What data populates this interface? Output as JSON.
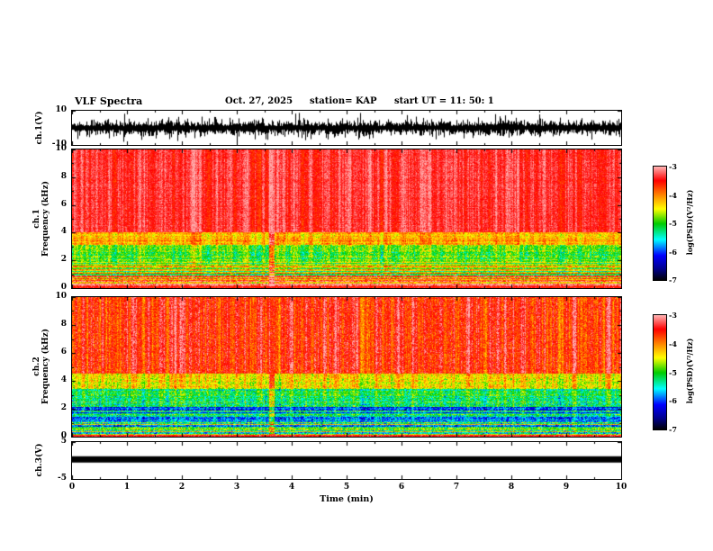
{
  "header": {
    "title": "VLF Spectra",
    "date": "Oct. 27, 2025",
    "station": "station= KAP",
    "start_ut": "start UT =  11: 50: 1"
  },
  "figure": {
    "xlabel": "Time (min)",
    "xlim": [
      0,
      10
    ],
    "xticks": [
      0,
      1,
      2,
      3,
      4,
      5,
      6,
      7,
      8,
      9,
      10
    ],
    "colormap": [
      {
        "t": 0.0,
        "c": "#000000"
      },
      {
        "t": 0.1,
        "c": "#00008b"
      },
      {
        "t": 0.22,
        "c": "#0000ff"
      },
      {
        "t": 0.36,
        "c": "#00ffff"
      },
      {
        "t": 0.5,
        "c": "#00cc00"
      },
      {
        "t": 0.63,
        "c": "#ffff00"
      },
      {
        "t": 0.75,
        "c": "#ff8800"
      },
      {
        "t": 0.88,
        "c": "#ff0000"
      },
      {
        "t": 1.0,
        "c": "#ffb0b0"
      }
    ],
    "colorbars": [
      {
        "label": "log(PSD)(V²/Hz)",
        "ticks": [
          -3,
          -4,
          -5,
          -6,
          -7
        ],
        "range": [
          -7,
          -3
        ]
      },
      {
        "label": "log(PSD)(V²/Hz)",
        "ticks": [
          -3,
          -4,
          -5,
          -6,
          -7
        ],
        "range": [
          -7,
          -3
        ]
      }
    ]
  },
  "chart_data": [
    {
      "type": "line",
      "name": "ch1-waveform",
      "ylabel": "ch.1(V)",
      "ylim": [
        -10,
        10
      ],
      "yticks": [
        10,
        -10
      ],
      "xlim": [
        0,
        10
      ],
      "noise": {
        "seed": 11,
        "base_amp": 4.2,
        "spike_amp": 5.5,
        "spike_prob": 0.05
      },
      "description": "dense black broadband audio waveform, typical amplitude ±4 V, spikes to ±10 V"
    },
    {
      "type": "heatmap",
      "name": "ch1-spectrogram",
      "ylabel_lines": [
        "ch.1",
        "Frequency (kHz)"
      ],
      "ylim": [
        0,
        10
      ],
      "yticks": [
        0,
        2,
        4,
        6,
        8,
        10
      ],
      "xlim": [
        0,
        10
      ],
      "seed": 101,
      "event": {
        "t_min": 3.64,
        "w_min": 0.1,
        "boost": 0.9
      },
      "bottom_line": {
        "f": 0.12,
        "level": -3.5
      },
      "bands": [
        {
          "f0": 4.0,
          "f1": 10.0,
          "mean": -3.35,
          "sigma": 0.18,
          "colvar": 0.28,
          "rowvar": 0.05
        },
        {
          "f0": 3.1,
          "f1": 4.0,
          "mean": -4.15,
          "sigma": 0.3,
          "colvar": 0.3,
          "rowvar": 0.18
        },
        {
          "f0": 1.9,
          "f1": 3.1,
          "mean": -4.9,
          "sigma": 0.4,
          "colvar": 0.35,
          "rowvar": 0.25
        },
        {
          "f0": 0.9,
          "f1": 1.9,
          "mean": -4.5,
          "sigma": 0.35,
          "colvar": 0.25,
          "rowvar": 0.85
        },
        {
          "f0": 0.0,
          "f1": 0.9,
          "mean": -3.9,
          "sigma": 0.45,
          "colvar": 0.15,
          "rowvar": 0.95
        }
      ]
    },
    {
      "type": "heatmap",
      "name": "ch2-spectrogram",
      "ylabel_lines": [
        "ch.2",
        "Frequency (kHz)"
      ],
      "ylim": [
        0,
        10
      ],
      "yticks": [
        0,
        2,
        4,
        6,
        8,
        10
      ],
      "xlim": [
        0,
        10
      ],
      "seed": 202,
      "event": {
        "t_min": 3.64,
        "w_min": 0.1,
        "boost": 0.9
      },
      "bottom_line": {
        "f": 0.14,
        "level": -3.4
      },
      "bands": [
        {
          "f0": 4.5,
          "f1": 10.0,
          "mean": -3.55,
          "sigma": 0.3,
          "colvar": 0.5,
          "rowvar": 0.06
        },
        {
          "f0": 3.4,
          "f1": 4.5,
          "mean": -4.35,
          "sigma": 0.35,
          "colvar": 0.4,
          "rowvar": 0.2
        },
        {
          "f0": 2.3,
          "f1": 3.4,
          "mean": -5.0,
          "sigma": 0.4,
          "colvar": 0.35,
          "rowvar": 0.4
        },
        {
          "f0": 1.0,
          "f1": 2.3,
          "mean": -5.55,
          "sigma": 0.45,
          "colvar": 0.25,
          "rowvar": 0.65
        },
        {
          "f0": 0.0,
          "f1": 1.0,
          "mean": -5.1,
          "sigma": 0.5,
          "colvar": 0.15,
          "rowvar": 0.9
        }
      ]
    },
    {
      "type": "line",
      "name": "ch3-trace",
      "ylabel": "ch.3(V)",
      "ylim": [
        -5,
        5
      ],
      "yticks": [
        5,
        -5
      ],
      "xlim": [
        0,
        10
      ],
      "bar": {
        "value": 0.3,
        "half_width_v": 0.85
      },
      "description": "flat thick black trace near 0 V for entire interval"
    }
  ]
}
